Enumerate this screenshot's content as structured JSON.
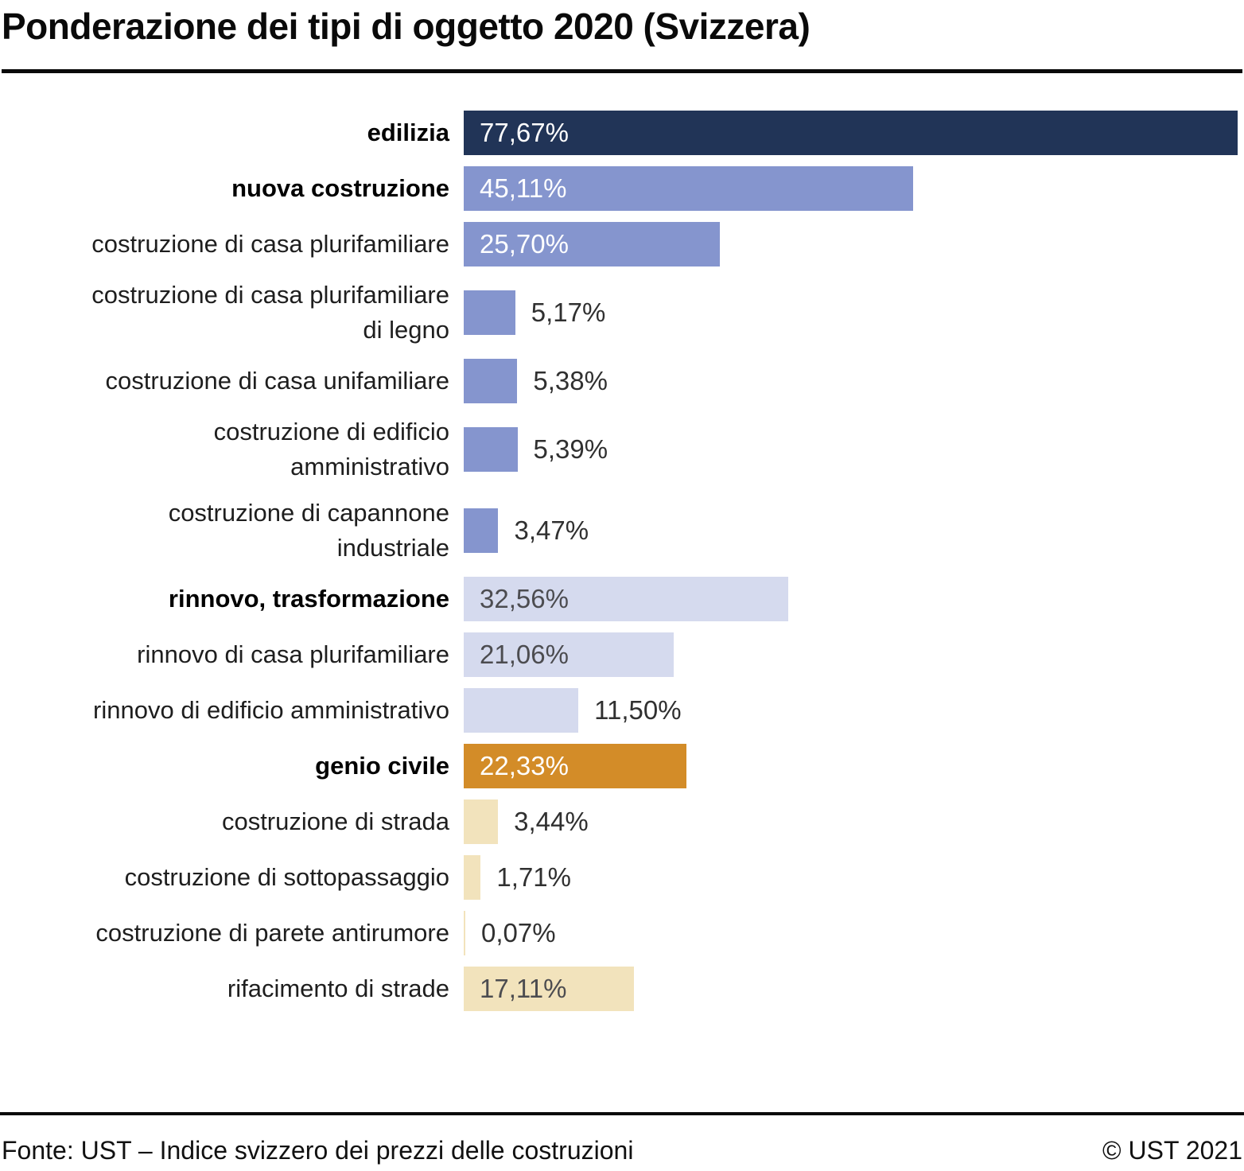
{
  "title": "Ponderazione dei tipi di oggetto 2020 (Svizzera)",
  "footer": {
    "source": "Fonte: UST – Indice svizzero dei prezzi delle costruzioni",
    "copyright": "© UST 2021"
  },
  "colors": {
    "navy": "#213457",
    "blue": "#8595CE",
    "lavender": "#D5DAEE",
    "orange": "#D38C28",
    "cream": "#F2E3BC",
    "value_on_dark": "#FFFFFF",
    "value_on_light": "#4C4C50",
    "value_outside": "#303030"
  },
  "chart_data": {
    "type": "bar",
    "orientation": "horizontal",
    "title": "Ponderazione dei tipi di oggetto 2020 (Svizzera)",
    "xlabel": "",
    "ylabel": "",
    "xlim": [
      0,
      77.67
    ],
    "max_value": 77.67,
    "grid": false,
    "legend": false,
    "value_format": "percent with comma decimal separator",
    "categories": [
      "edilizia",
      "nuova costruzione",
      "costruzione di casa plurifamiliare",
      "costruzione di casa plurifamiliare di legno",
      "costruzione di casa unifamiliare",
      "costruzione di edificio amministrativo",
      "costruzione di capannone industriale",
      "rinnovo, trasformazione",
      "rinnovo di casa plurifamiliare",
      "rinnovo di edificio amministrativo",
      "genio civile",
      "costruzione di strada",
      "costruzione di sottopassaggio",
      "costruzione di parete antirumore",
      "rifacimento di strade"
    ],
    "values": [
      77.67,
      45.11,
      25.7,
      5.17,
      5.38,
      5.39,
      3.47,
      32.56,
      21.06,
      11.5,
      22.33,
      3.44,
      1.71,
      0.07,
      17.11
    ],
    "bars": [
      {
        "label": "edilizia",
        "value": 77.67,
        "display_value": "77,67%",
        "bold": true,
        "color": "#213457",
        "value_color": "#FFFFFF",
        "value_placement": "inside"
      },
      {
        "label": "nuova costruzione",
        "value": 45.11,
        "display_value": "45,11%",
        "bold": true,
        "color": "#8595CE",
        "value_color": "#FFFFFF",
        "value_placement": "inside"
      },
      {
        "label": "costruzione di casa plurifamiliare",
        "value": 25.7,
        "display_value": "25,70%",
        "bold": false,
        "color": "#8595CE",
        "value_color": "#FFFFFF",
        "value_placement": "inside"
      },
      {
        "label": "costruzione di casa plurifamiliare\ndi legno",
        "value": 5.17,
        "display_value": "5,17%",
        "bold": false,
        "color": "#8595CE",
        "value_color": "#303030",
        "value_placement": "outside"
      },
      {
        "label": "costruzione di casa unifamiliare",
        "value": 5.38,
        "display_value": "5,38%",
        "bold": false,
        "color": "#8595CE",
        "value_color": "#303030",
        "value_placement": "outside"
      },
      {
        "label": "costruzione di edificio\namministrativo",
        "value": 5.39,
        "display_value": "5,39%",
        "bold": false,
        "color": "#8595CE",
        "value_color": "#303030",
        "value_placement": "outside"
      },
      {
        "label": "costruzione di capannone\nindustriale",
        "value": 3.47,
        "display_value": "3,47%",
        "bold": false,
        "color": "#8595CE",
        "value_color": "#303030",
        "value_placement": "outside"
      },
      {
        "label": "rinnovo, trasformazione",
        "value": 32.56,
        "display_value": "32,56%",
        "bold": true,
        "color": "#D5DAEE",
        "value_color": "#4C4C50",
        "value_placement": "inside"
      },
      {
        "label": "rinnovo di casa plurifamiliare",
        "value": 21.06,
        "display_value": "21,06%",
        "bold": false,
        "color": "#D5DAEE",
        "value_color": "#4C4C50",
        "value_placement": "inside"
      },
      {
        "label": "rinnovo di edificio amministrativo",
        "value": 11.5,
        "display_value": "11,50%",
        "bold": false,
        "color": "#D5DAEE",
        "value_color": "#303030",
        "value_placement": "outside"
      },
      {
        "label": "genio civile",
        "value": 22.33,
        "display_value": "22,33%",
        "bold": true,
        "color": "#D38C28",
        "value_color": "#FFFFFF",
        "value_placement": "inside"
      },
      {
        "label": "costruzione di strada",
        "value": 3.44,
        "display_value": "3,44%",
        "bold": false,
        "color": "#F2E3BC",
        "value_color": "#303030",
        "value_placement": "outside"
      },
      {
        "label": "costruzione di sottopassaggio",
        "value": 1.71,
        "display_value": "1,71%",
        "bold": false,
        "color": "#F2E3BC",
        "value_color": "#303030",
        "value_placement": "outside"
      },
      {
        "label": "costruzione di parete antirumore",
        "value": 0.07,
        "display_value": "0,07%",
        "bold": false,
        "color": "#F2E3BC",
        "value_color": "#303030",
        "value_placement": "outside"
      },
      {
        "label": "rifacimento di strade",
        "value": 17.11,
        "display_value": "17,11%",
        "bold": false,
        "color": "#F2E3BC",
        "value_color": "#4C4C50",
        "value_placement": "inside"
      }
    ]
  }
}
